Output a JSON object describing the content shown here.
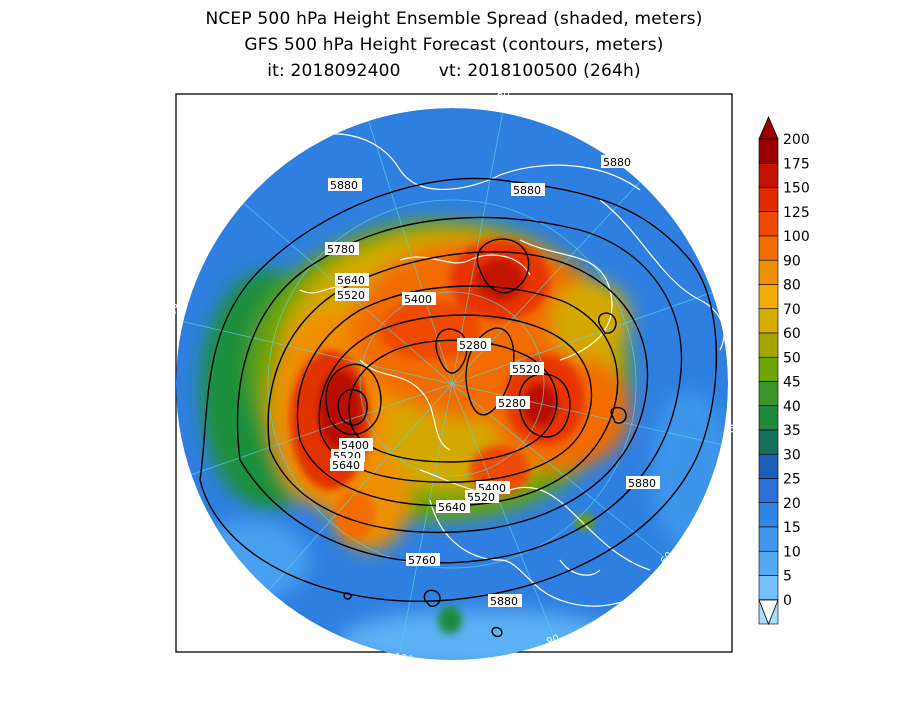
{
  "titles": {
    "line1": "NCEP 500 hPa Height Ensemble Spread (shaded, meters)",
    "line2": "GFS 500 hPa Height Forecast (contours, meters)",
    "init": "it: 2018092400",
    "valid": "vt: 2018100500 (264h)"
  },
  "longitude_labels": [
    "60",
    "30",
    "0",
    "30",
    "60",
    "90",
    "120",
    "150",
    "180",
    "150",
    "120",
    "90"
  ],
  "contour_labels": [
    "5880",
    "5880",
    "5880",
    "5780",
    "5640",
    "5520",
    "5400",
    "5280",
    "5520",
    "5280",
    "5400",
    "5520",
    "5640",
    "5400",
    "5520",
    "5640",
    "5880",
    "5760",
    "5880"
  ],
  "colorbar": {
    "levels": [
      "200",
      "175",
      "150",
      "125",
      "100",
      "90",
      "80",
      "70",
      "60",
      "50",
      "45",
      "40",
      "35",
      "30",
      "25",
      "20",
      "15",
      "10",
      "5",
      "0"
    ],
    "colors": [
      "#9b0000",
      "#c31200",
      "#e22a00",
      "#f04a00",
      "#f26c00",
      "#f08f00",
      "#f3ac00",
      "#d7ad00",
      "#a5a500",
      "#6fa300",
      "#3a9628",
      "#1f8a3c",
      "#12705c",
      "#1d5fb7",
      "#2a70d6",
      "#3385e3",
      "#3f98ec",
      "#55abf3",
      "#73c1f8",
      "#a6dcfd"
    ]
  }
}
